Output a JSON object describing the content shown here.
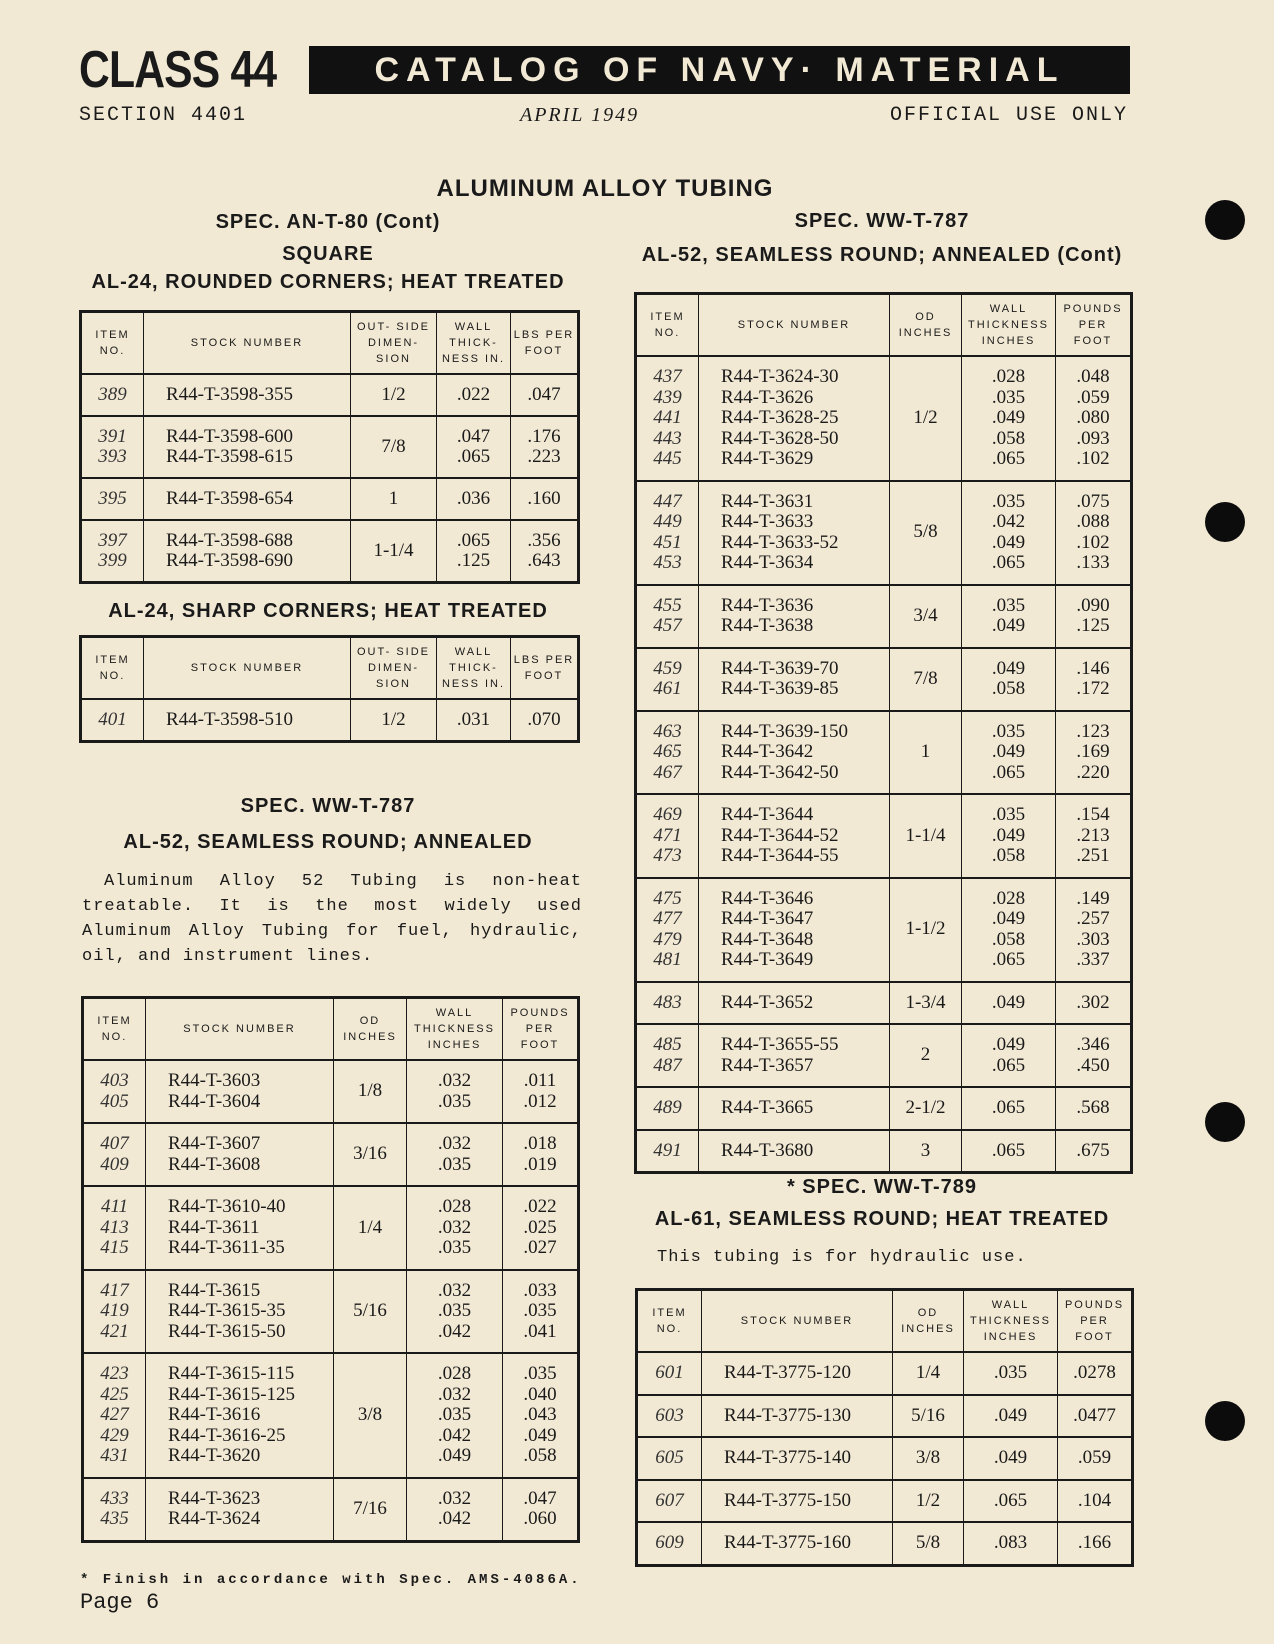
{
  "header": {
    "class_label": "CLASS 44",
    "banner": "CATALOG OF NAVY· MATERIAL",
    "section": "SECTION 4401",
    "date": "APRIL 1949",
    "restriction": "OFFICIAL USE ONLY"
  },
  "page_title": "ALUMINUM ALLOY TUBING",
  "left": {
    "spec1": "SPEC. AN-T-80 (Cont)",
    "square": "SQUARE",
    "sub1": "AL-24, ROUNDED CORNERS; HEAT TREATED",
    "sub2": "AL-24, SHARP CORNERS; HEAT TREATED",
    "spec2": "SPEC. WW-T-787",
    "sub3": "AL-52, SEAMLESS ROUND; ANNEALED",
    "paragraph": "Aluminum Alloy 52 Tubing is non-heat treatable. It is the most widely used Aluminum Alloy Tubing for fuel, hydraulic, oil, and instrument lines.",
    "footnote": "* Finish in accordance with Spec. AMS-4086A.",
    "page": "Page 6"
  },
  "right": {
    "spec1": "SPEC. WW-T-787",
    "sub1": "AL-52, SEAMLESS ROUND; ANNEALED (Cont)",
    "spec2": "* SPEC. WW-T-789",
    "sub2": "AL-61, SEAMLESS ROUND; HEAT TREATED",
    "paragraph": "This tubing is for hydraulic use."
  },
  "tables": {
    "square_rounded": {
      "headers": [
        "ITEM NO.",
        "STOCK NUMBER",
        "OUT- SIDE DIMEN- SION",
        "WALL THICK- NESS IN.",
        "LBS PER FOOT"
      ],
      "groups": [
        {
          "items": [
            "389"
          ],
          "stock": [
            "R44-T-3598-355"
          ],
          "od": "1/2",
          "wall": [
            ".022"
          ],
          "lbs": [
            ".047"
          ]
        },
        {
          "items": [
            "391",
            "393"
          ],
          "stock": [
            "R44-T-3598-600",
            "R44-T-3598-615"
          ],
          "od": "7/8",
          "wall": [
            ".047",
            ".065"
          ],
          "lbs": [
            ".176",
            ".223"
          ]
        },
        {
          "items": [
            "395"
          ],
          "stock": [
            "R44-T-3598-654"
          ],
          "od": "1",
          "wall": [
            ".036"
          ],
          "lbs": [
            ".160"
          ]
        },
        {
          "items": [
            "397",
            "399"
          ],
          "stock": [
            "R44-T-3598-688",
            "R44-T-3598-690"
          ],
          "od": "1-1/4",
          "wall": [
            ".065",
            ".125"
          ],
          "lbs": [
            ".356",
            ".643"
          ]
        }
      ]
    },
    "square_sharp": {
      "headers": [
        "ITEM NO.",
        "STOCK NUMBER",
        "OUT- SIDE DIMEN- SION",
        "WALL THICK- NESS IN.",
        "LBS PER FOOT"
      ],
      "groups": [
        {
          "items": [
            "401"
          ],
          "stock": [
            "R44-T-3598-510"
          ],
          "od": "1/2",
          "wall": [
            ".031"
          ],
          "lbs": [
            ".070"
          ]
        }
      ]
    },
    "al52_left": {
      "headers": [
        "ITEM NO.",
        "STOCK NUMBER",
        "OD INCHES",
        "WALL THICKNESS INCHES",
        "POUNDS PER FOOT"
      ],
      "groups": [
        {
          "items": [
            "403",
            "405"
          ],
          "stock": [
            "R44-T-3603",
            "R44-T-3604"
          ],
          "od": "1/8",
          "wall": [
            ".032",
            ".035"
          ],
          "lbs": [
            ".011",
            ".012"
          ]
        },
        {
          "items": [
            "407",
            "409"
          ],
          "stock": [
            "R44-T-3607",
            "R44-T-3608"
          ],
          "od": "3/16",
          "wall": [
            ".032",
            ".035"
          ],
          "lbs": [
            ".018",
            ".019"
          ]
        },
        {
          "items": [
            "411",
            "413",
            "415"
          ],
          "stock": [
            "R44-T-3610-40",
            "R44-T-3611",
            "R44-T-3611-35"
          ],
          "od": "1/4",
          "wall": [
            ".028",
            ".032",
            ".035"
          ],
          "lbs": [
            ".022",
            ".025",
            ".027"
          ]
        },
        {
          "items": [
            "417",
            "419",
            "421"
          ],
          "stock": [
            "R44-T-3615",
            "R44-T-3615-35",
            "R44-T-3615-50"
          ],
          "od": "5/16",
          "wall": [
            ".032",
            ".035",
            ".042"
          ],
          "lbs": [
            ".033",
            ".035",
            ".041"
          ]
        },
        {
          "items": [
            "423",
            "425",
            "427",
            "429",
            "431"
          ],
          "stock": [
            "R44-T-3615-115",
            "R44-T-3615-125",
            "R44-T-3616",
            "R44-T-3616-25",
            "R44-T-3620"
          ],
          "od": "3/8",
          "wall": [
            ".028",
            ".032",
            ".035",
            ".042",
            ".049"
          ],
          "lbs": [
            ".035",
            ".040",
            ".043",
            ".049",
            ".058"
          ]
        },
        {
          "items": [
            "433",
            "435"
          ],
          "stock": [
            "R44-T-3623",
            "R44-T-3624"
          ],
          "od": "7/16",
          "wall": [
            ".032",
            ".042"
          ],
          "lbs": [
            ".047",
            ".060"
          ]
        }
      ]
    },
    "al52_right": {
      "headers": [
        "ITEM NO.",
        "STOCK NUMBER",
        "OD INCHES",
        "WALL THICKNESS INCHES",
        "POUNDS PER FOOT"
      ],
      "groups": [
        {
          "items": [
            "437",
            "439",
            "441",
            "443",
            "445"
          ],
          "stock": [
            "R44-T-3624-30",
            "R44-T-3626",
            "R44-T-3628-25",
            "R44-T-3628-50",
            "R44-T-3629"
          ],
          "od": "1/2",
          "wall": [
            ".028",
            ".035",
            ".049",
            ".058",
            ".065"
          ],
          "lbs": [
            ".048",
            ".059",
            ".080",
            ".093",
            ".102"
          ]
        },
        {
          "items": [
            "447",
            "449",
            "451",
            "453"
          ],
          "stock": [
            "R44-T-3631",
            "R44-T-3633",
            "R44-T-3633-52",
            "R44-T-3634"
          ],
          "od": "5/8",
          "wall": [
            ".035",
            ".042",
            ".049",
            ".065"
          ],
          "lbs": [
            ".075",
            ".088",
            ".102",
            ".133"
          ]
        },
        {
          "items": [
            "455",
            "457"
          ],
          "stock": [
            "R44-T-3636",
            "R44-T-3638"
          ],
          "od": "3/4",
          "wall": [
            ".035",
            ".049"
          ],
          "lbs": [
            ".090",
            ".125"
          ]
        },
        {
          "items": [
            "459",
            "461"
          ],
          "stock": [
            "R44-T-3639-70",
            "R44-T-3639-85"
          ],
          "od": "7/8",
          "wall": [
            ".049",
            ".058"
          ],
          "lbs": [
            ".146",
            ".172"
          ]
        },
        {
          "items": [
            "463",
            "465",
            "467"
          ],
          "stock": [
            "R44-T-3639-150",
            "R44-T-3642",
            "R44-T-3642-50"
          ],
          "od": "1",
          "wall": [
            ".035",
            ".049",
            ".065"
          ],
          "lbs": [
            ".123",
            ".169",
            ".220"
          ]
        },
        {
          "items": [
            "469",
            "471",
            "473"
          ],
          "stock": [
            "R44-T-3644",
            "R44-T-3644-52",
            "R44-T-3644-55"
          ],
          "od": "1-1/4",
          "wall": [
            ".035",
            ".049",
            ".058"
          ],
          "lbs": [
            ".154",
            ".213",
            ".251"
          ]
        },
        {
          "items": [
            "475",
            "477",
            "479",
            "481"
          ],
          "stock": [
            "R44-T-3646",
            "R44-T-3647",
            "R44-T-3648",
            "R44-T-3649"
          ],
          "od": "1-1/2",
          "wall": [
            ".028",
            ".049",
            ".058",
            ".065"
          ],
          "lbs": [
            ".149",
            ".257",
            ".303",
            ".337"
          ]
        },
        {
          "items": [
            "483"
          ],
          "stock": [
            "R44-T-3652"
          ],
          "od": "1-3/4",
          "wall": [
            ".049"
          ],
          "lbs": [
            ".302"
          ]
        },
        {
          "items": [
            "485",
            "487"
          ],
          "stock": [
            "R44-T-3655-55",
            "R44-T-3657"
          ],
          "od": "2",
          "wall": [
            ".049",
            ".065"
          ],
          "lbs": [
            ".346",
            ".450"
          ]
        },
        {
          "items": [
            "489"
          ],
          "stock": [
            "R44-T-3665"
          ],
          "od": "2-1/2",
          "wall": [
            ".065"
          ],
          "lbs": [
            ".568"
          ]
        },
        {
          "items": [
            "491"
          ],
          "stock": [
            "R44-T-3680"
          ],
          "od": "3",
          "wall": [
            ".065"
          ],
          "lbs": [
            ".675"
          ]
        }
      ]
    },
    "al61": {
      "headers": [
        "ITEM NO.",
        "STOCK NUMBER",
        "OD INCHES",
        "WALL THICKNESS INCHES",
        "POUNDS PER FOOT"
      ],
      "groups": [
        {
          "items": [
            "601"
          ],
          "stock": [
            "R44-T-3775-120"
          ],
          "od": "1/4",
          "wall": [
            ".035"
          ],
          "lbs": [
            ".0278"
          ]
        },
        {
          "items": [
            "603"
          ],
          "stock": [
            "R44-T-3775-130"
          ],
          "od": "5/16",
          "wall": [
            ".049"
          ],
          "lbs": [
            ".0477"
          ]
        },
        {
          "items": [
            "605"
          ],
          "stock": [
            "R44-T-3775-140"
          ],
          "od": "3/8",
          "wall": [
            ".049"
          ],
          "lbs": [
            ".059"
          ]
        },
        {
          "items": [
            "607"
          ],
          "stock": [
            "R44-T-3775-150"
          ],
          "od": "1/2",
          "wall": [
            ".065"
          ],
          "lbs": [
            ".104"
          ]
        },
        {
          "items": [
            "609"
          ],
          "stock": [
            "R44-T-3775-160"
          ],
          "od": "5/8",
          "wall": [
            ".083"
          ],
          "lbs": [
            ".166"
          ]
        }
      ]
    }
  }
}
